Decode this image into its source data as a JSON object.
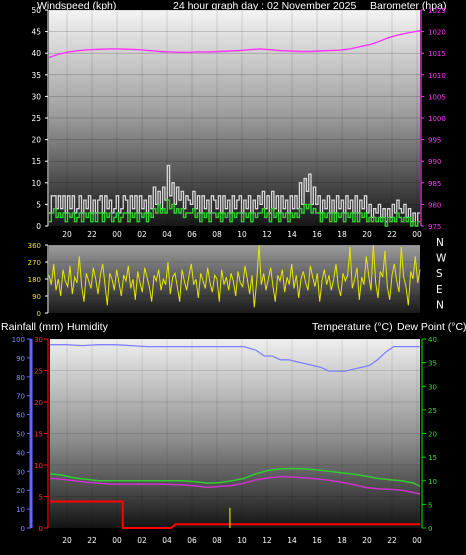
{
  "header": {
    "wind_label": "Windspeed (kph)",
    "title": "24 hour graph day : 02 November 2025",
    "baro_label": "Barometer (hpa)",
    "rain_label": "Rainfall (mm)",
    "hum_label": "Humidity",
    "temp_label": "Temperature (°C)",
    "dew_label": "Dew Point (°C)"
  },
  "colors": {
    "wind_gust": "#d8d8d8",
    "wind_avg": "#33cc33",
    "barometer": "#ff33ff",
    "direction": "#e6e600",
    "humidity": "#8080ff",
    "temperature": "#33cc33",
    "dewpoint": "#cc33cc",
    "rainfall": "#ff0000",
    "rain_rate": "#cccc00",
    "rain_axis": "#ff0000",
    "humidity_axis": "#6666ff",
    "temp_axis": "#00cc00"
  },
  "chart_data": [
    {
      "type": "line",
      "name": "wind-barometer",
      "x_ticks": [
        "20",
        "22",
        "00",
        "02",
        "04",
        "06",
        "08",
        "10",
        "12",
        "14",
        "16",
        "18",
        "20",
        "22",
        "00"
      ],
      "left_axis": {
        "ticks": [
          0,
          5,
          10,
          15,
          20,
          25,
          30,
          35,
          40,
          45,
          50
        ],
        "ylim": [
          0,
          50
        ]
      },
      "right_axis": {
        "ticks": [
          975,
          980,
          985,
          990,
          995,
          1000,
          1005,
          1010,
          1015,
          1020,
          1025
        ],
        "ylim": [
          975,
          1025
        ]
      },
      "series": [
        {
          "key": "gust",
          "axis": "left",
          "values": [
            3,
            7,
            7,
            4,
            7,
            4,
            7,
            3,
            7,
            4,
            7,
            3,
            4,
            7,
            3,
            6,
            4,
            7,
            3,
            6,
            3,
            6,
            7,
            3,
            7,
            4,
            6,
            3,
            4,
            7,
            3,
            4,
            7,
            6,
            3,
            7,
            4,
            7,
            3,
            7,
            4,
            6,
            3,
            7,
            4,
            9,
            5,
            8,
            4,
            9,
            6,
            14,
            7,
            10,
            5,
            9,
            6,
            8,
            4,
            7,
            6,
            5,
            8,
            4,
            7,
            3,
            7,
            4,
            6,
            3,
            7,
            6,
            4,
            7,
            3,
            7,
            4,
            6,
            3,
            7,
            4,
            6,
            7,
            3,
            6,
            4,
            7,
            3,
            6,
            4,
            7,
            5,
            8,
            4,
            7,
            3,
            8,
            4,
            7,
            3,
            7,
            4,
            6,
            3,
            7,
            4,
            7,
            4,
            10,
            5,
            11,
            8,
            12,
            5,
            9,
            5,
            7,
            3,
            6,
            4,
            7,
            3,
            6,
            3,
            7,
            4,
            6,
            3,
            7,
            4,
            6,
            3,
            7,
            3,
            6,
            4,
            7,
            3,
            5,
            2,
            4,
            3,
            5,
            2,
            4,
            1,
            4,
            2,
            5,
            3,
            6,
            4,
            3,
            5,
            2,
            4,
            1,
            3,
            0,
            3
          ]
        },
        {
          "key": "average",
          "axis": "left",
          "values": [
            1,
            3,
            4,
            2,
            3,
            2,
            3,
            1,
            3,
            2,
            3,
            1,
            2,
            3,
            1,
            3,
            2,
            3,
            1,
            3,
            1,
            3,
            3,
            1,
            3,
            2,
            3,
            1,
            2,
            3,
            1,
            2,
            3,
            3,
            1,
            3,
            2,
            3,
            1,
            3,
            2,
            3,
            1,
            3,
            2,
            4,
            3,
            5,
            3,
            4,
            3,
            6,
            4,
            5,
            3,
            4,
            3,
            4,
            2,
            3,
            3,
            3,
            4,
            2,
            3,
            1,
            3,
            2,
            3,
            1,
            3,
            3,
            2,
            3,
            1,
            3,
            2,
            3,
            1,
            3,
            2,
            3,
            3,
            1,
            3,
            2,
            3,
            1,
            3,
            2,
            3,
            3,
            4,
            2,
            3,
            1,
            4,
            2,
            3,
            1,
            3,
            2,
            3,
            1,
            3,
            2,
            3,
            2,
            4,
            3,
            5,
            4,
            5,
            3,
            4,
            3,
            3,
            1,
            3,
            2,
            3,
            1,
            3,
            1,
            3,
            2,
            3,
            1,
            3,
            2,
            3,
            1,
            3,
            1,
            3,
            2,
            3,
            1,
            2,
            1,
            2,
            1,
            2,
            1,
            2,
            0,
            2,
            1,
            2,
            1,
            3,
            2,
            1,
            2,
            1,
            2,
            0,
            1,
            0,
            1
          ]
        },
        {
          "key": "barometer",
          "axis": "right",
          "values": [
            1014,
            1014.8,
            1015.3,
            1015.6,
            1015.8,
            1015.9,
            1016,
            1016,
            1015.9,
            1015.8,
            1015.6,
            1015.4,
            1015.3,
            1015.2,
            1015.2,
            1015.3,
            1015.3,
            1015.4,
            1015.5,
            1015.6,
            1015.8,
            1016,
            1015.8,
            1015.6,
            1015.5,
            1015.4,
            1015.4,
            1015.5,
            1015.6,
            1015.7,
            1016,
            1016.5,
            1017,
            1017.8,
            1018.7,
            1019.3,
            1019.8,
            1020.2
          ]
        }
      ],
      "ylabel_left": "Windspeed (kph)",
      "ylabel_right": "Barometer (hpa)"
    },
    {
      "type": "line",
      "name": "wind-direction",
      "y_ticks": [
        0,
        90,
        180,
        270,
        360
      ],
      "ylim": [
        0,
        360
      ],
      "compass": [
        "N",
        "W",
        "S",
        "E",
        "N"
      ],
      "series": [
        {
          "key": "direction",
          "values": [
            200,
            150,
            260,
            120,
            180,
            90,
            230,
            170,
            140,
            250,
            100,
            190,
            160,
            300,
            140,
            60,
            210,
            170,
            130,
            240,
            180,
            100,
            200,
            260,
            150,
            40,
            210,
            180,
            120,
            230,
            160,
            90,
            200,
            170,
            250,
            130,
            180,
            70,
            220,
            160,
            110,
            240,
            190,
            140,
            60,
            200,
            170,
            230,
            120,
            180,
            150,
            270,
            100,
            190,
            210,
            140,
            60,
            230,
            170,
            120,
            200,
            260,
            150,
            180,
            80,
            210,
            170,
            130,
            240,
            160,
            110,
            200,
            180,
            60,
            230,
            150,
            190,
            120,
            210,
            170,
            90,
            220,
            160,
            140,
            250,
            180,
            100,
            200,
            30,
            170,
            360,
            150,
            210,
            120,
            180,
            240,
            140,
            60,
            200,
            170,
            230,
            110,
            190,
            150,
            260,
            130,
            200,
            80,
            180,
            220,
            160,
            120,
            250,
            190,
            140,
            210,
            60,
            170,
            230,
            150,
            200,
            120,
            180,
            260,
            140,
            90,
            210,
            170,
            200,
            350,
            130,
            180,
            240,
            70,
            190,
            150,
            300,
            200,
            120,
            360,
            160,
            80,
            220,
            190,
            330,
            140,
            70,
            200,
            260,
            170,
            110,
            350,
            190,
            140,
            40,
            220,
            180,
            300,
            160,
            230
          ]
        }
      ]
    },
    {
      "type": "line",
      "name": "rain-humidity-temperature",
      "x_ticks": [
        "20",
        "22",
        "00",
        "02",
        "04",
        "06",
        "08",
        "10",
        "12",
        "14",
        "16",
        "18",
        "20",
        "22",
        "00"
      ],
      "rain_axis": {
        "ticks": [
          0,
          5,
          10,
          15,
          20,
          25,
          30
        ],
        "ylim": [
          0,
          30
        ]
      },
      "humidity_axis": {
        "ticks": [
          0,
          10,
          20,
          30,
          40,
          50,
          60,
          70,
          80,
          90,
          100
        ],
        "ylim": [
          0,
          100
        ]
      },
      "temp_axis": {
        "ticks": [
          0,
          5,
          10,
          15,
          20,
          25,
          30,
          35,
          40
        ],
        "ylim": [
          0,
          40
        ]
      },
      "series": [
        {
          "key": "humidity",
          "axis": "humidity",
          "points": [
            [
              0,
              97
            ],
            [
              8,
              97
            ],
            [
              16,
              96.5
            ],
            [
              24,
              97
            ],
            [
              32,
              97
            ],
            [
              40,
              96.5
            ],
            [
              48,
              96
            ],
            [
              56,
              96
            ],
            [
              64,
              96
            ],
            [
              72,
              96
            ],
            [
              80,
              96
            ],
            [
              88,
              96
            ],
            [
              96,
              96
            ],
            [
              102,
              94
            ],
            [
              106,
              91
            ],
            [
              110,
              91
            ],
            [
              114,
              89
            ],
            [
              118,
              89
            ],
            [
              122,
              88
            ],
            [
              126,
              87
            ],
            [
              130,
              86
            ],
            [
              134,
              85
            ],
            [
              138,
              83
            ],
            [
              142,
              83
            ],
            [
              146,
              83
            ],
            [
              150,
              84
            ],
            [
              154,
              85
            ],
            [
              158,
              86
            ],
            [
              162,
              89
            ],
            [
              166,
              93
            ],
            [
              170,
              96
            ],
            [
              174,
              96
            ],
            [
              178,
              96
            ],
            [
              183,
              96
            ]
          ]
        },
        {
          "key": "temperature",
          "axis": "temp",
          "points": [
            [
              0,
              11.5
            ],
            [
              6,
              11.2
            ],
            [
              12,
              10.6
            ],
            [
              18,
              10.3
            ],
            [
              24,
              10
            ],
            [
              30,
              10
            ],
            [
              36,
              10
            ],
            [
              42,
              10
            ],
            [
              48,
              10
            ],
            [
              54,
              10
            ],
            [
              60,
              10
            ],
            [
              66,
              10
            ],
            [
              72,
              9.8
            ],
            [
              78,
              9.5
            ],
            [
              84,
              9.6
            ],
            [
              90,
              10
            ],
            [
              96,
              10.5
            ],
            [
              102,
              11.5
            ],
            [
              108,
              12.2
            ],
            [
              114,
              12.5
            ],
            [
              120,
              12.6
            ],
            [
              126,
              12.5
            ],
            [
              132,
              12.3
            ],
            [
              138,
              12
            ],
            [
              144,
              11.7
            ],
            [
              150,
              11.4
            ],
            [
              156,
              11
            ],
            [
              162,
              10.5
            ],
            [
              168,
              10.2
            ],
            [
              174,
              10
            ],
            [
              180,
              9.5
            ],
            [
              183,
              8.8
            ]
          ]
        },
        {
          "key": "dewpoint",
          "axis": "temp",
          "points": [
            [
              0,
              10.5
            ],
            [
              6,
              10.3
            ],
            [
              12,
              10
            ],
            [
              18,
              9.7
            ],
            [
              24,
              9.5
            ],
            [
              30,
              9.3
            ],
            [
              36,
              9.3
            ],
            [
              42,
              9.3
            ],
            [
              48,
              9.3
            ],
            [
              54,
              9.3
            ],
            [
              60,
              9.2
            ],
            [
              66,
              9.1
            ],
            [
              72,
              8.9
            ],
            [
              78,
              8.6
            ],
            [
              84,
              8.8
            ],
            [
              90,
              9
            ],
            [
              96,
              9.5
            ],
            [
              102,
              10.2
            ],
            [
              108,
              10.6
            ],
            [
              114,
              10.9
            ],
            [
              120,
              10.8
            ],
            [
              126,
              10.6
            ],
            [
              132,
              10.4
            ],
            [
              138,
              10.1
            ],
            [
              144,
              9.7
            ],
            [
              150,
              9.2
            ],
            [
              156,
              8.6
            ],
            [
              162,
              8.3
            ],
            [
              168,
              8.2
            ],
            [
              174,
              8
            ],
            [
              180,
              7.5
            ],
            [
              183,
              7.2
            ]
          ]
        },
        {
          "key": "rainfall",
          "axis": "rain",
          "points": [
            [
              0,
              4.2
            ],
            [
              36,
              4.2
            ],
            [
              36,
              0
            ],
            [
              60,
              0
            ],
            [
              62,
              0.6
            ],
            [
              140,
              0.6
            ],
            [
              183,
              0.6
            ]
          ]
        },
        {
          "key": "rain_rate",
          "axis": "rain",
          "points": [
            [
              89,
              0
            ],
            [
              89,
              3.2
            ]
          ]
        }
      ],
      "ylabel_left": "Rainfall (mm)",
      "ylabel_humidity": "Humidity",
      "ylabel_right": "Temperature (°C)",
      "ylabel_right2": "Dew Point (°C)"
    }
  ]
}
